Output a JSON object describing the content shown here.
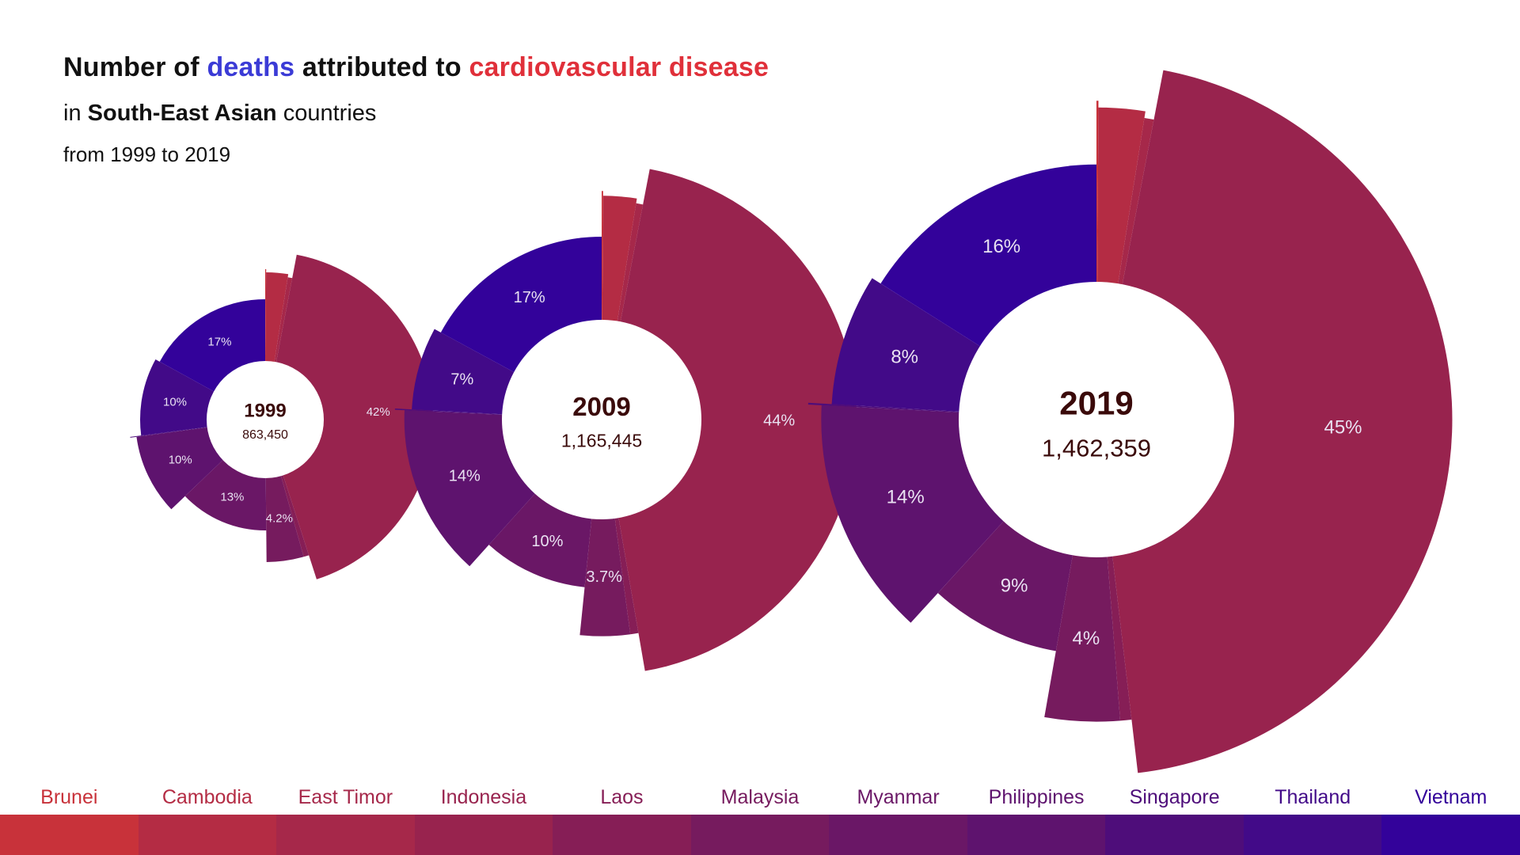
{
  "header": {
    "title_parts": [
      {
        "text": "Number of ",
        "color": "#111111"
      },
      {
        "text": "deaths",
        "color": "#3b3bd6"
      },
      {
        "text": " attributed to ",
        "color": "#111111"
      },
      {
        "text": "cardiovascular disease",
        "color": "#e0303a"
      }
    ],
    "subtitle_parts": [
      {
        "text": "in ",
        "bold": false
      },
      {
        "text": "South-East Asian",
        "bold": true
      },
      {
        "text": " countries",
        "bold": false
      }
    ],
    "subtitle2": "from 1999 to 2019"
  },
  "countries": [
    {
      "name": "Brunei",
      "color": "#c8323a"
    },
    {
      "name": "Cambodia",
      "color": "#b42c44"
    },
    {
      "name": "East Timor",
      "color": "#a6284a"
    },
    {
      "name": "Indonesia",
      "color": "#98234e"
    },
    {
      "name": "Laos",
      "color": "#861e56"
    },
    {
      "name": "Malaysia",
      "color": "#761b5e"
    },
    {
      "name": "Myanmar",
      "color": "#6a1766"
    },
    {
      "name": "Philippines",
      "color": "#5e136e"
    },
    {
      "name": "Singapore",
      "color": "#4e0d7a"
    },
    {
      "name": "Thailand",
      "color": "#420a88"
    },
    {
      "name": "Vietnam",
      "color": "#33029a"
    }
  ],
  "chart_data": {
    "type": "pie",
    "variant": "polar-area donut (radius scaled per country)",
    "categories": [
      "Brunei",
      "Cambodia",
      "East Timor",
      "Indonesia",
      "Laos",
      "Malaysia",
      "Myanmar",
      "Philippines",
      "Singapore",
      "Thailand",
      "Vietnam"
    ],
    "series": [
      {
        "year": "1999",
        "total": "863,450",
        "shares": [
          0.1,
          2.4,
          0.5,
          42,
          0.6,
          4.2,
          13,
          10,
          0.1,
          10,
          17
        ],
        "labels": [
          "",
          "",
          "",
          "42%",
          "",
          "4.2%",
          "13%",
          "10%",
          "",
          "10%",
          "17%"
        ]
      },
      {
        "year": "2009",
        "total": "1,165,445",
        "shares": [
          0.1,
          2.4,
          0.5,
          44,
          0.6,
          3.7,
          10,
          14,
          0.1,
          7,
          17
        ],
        "labels": [
          "",
          "",
          "",
          "44%",
          "",
          "3.7%",
          "10%",
          "14%",
          "",
          "7%",
          "17%"
        ]
      },
      {
        "year": "2019",
        "total": "1,462,359",
        "shares": [
          0.1,
          2.4,
          0.5,
          45,
          0.6,
          4,
          9,
          14,
          0.1,
          8,
          16
        ],
        "labels": [
          "",
          "",
          "",
          "45%",
          "",
          "4%",
          "9%",
          "14%",
          "",
          "8%",
          "16%"
        ]
      }
    ]
  }
}
